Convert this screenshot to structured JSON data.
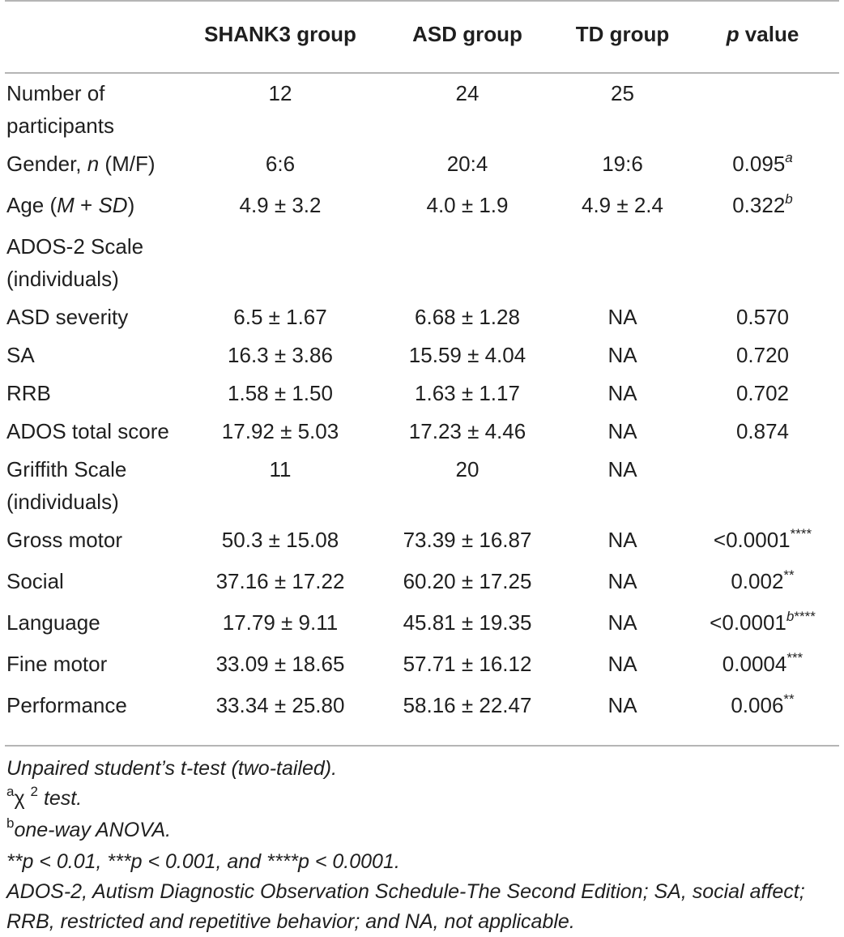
{
  "table": {
    "headers": [
      "",
      "SHANK3 group",
      "ASD group",
      "TD group",
      "p value"
    ],
    "rows": [
      {
        "label": "Number of participants",
        "shank3": "12",
        "asd": "24",
        "td": "25",
        "p": "",
        "p_sup": ""
      },
      {
        "label": "Gender, n (M/F)",
        "shank3": "6:6",
        "asd": "20:4",
        "td": "19:6",
        "p": "0.095",
        "p_sup": "a"
      },
      {
        "label": "Age (M + SD)",
        "shank3": "4.9 ± 3.2",
        "asd": "4.0 ± 1.9",
        "td": "4.9 ± 2.4",
        "p": "0.322",
        "p_sup": "b"
      },
      {
        "label": "ADOS-2 Scale (individuals)",
        "shank3": "",
        "asd": "",
        "td": "",
        "p": "",
        "p_sup": ""
      },
      {
        "label": "ASD severity",
        "shank3": "6.5 ± 1.67",
        "asd": "6.68 ± 1.28",
        "td": "NA",
        "p": "0.570",
        "p_sup": ""
      },
      {
        "label": "SA",
        "shank3": "16.3 ± 3.86",
        "asd": "15.59 ± 4.04",
        "td": "NA",
        "p": "0.720",
        "p_sup": ""
      },
      {
        "label": "RRB",
        "shank3": "1.58 ± 1.50",
        "asd": "1.63 ± 1.17",
        "td": "NA",
        "p": "0.702",
        "p_sup": ""
      },
      {
        "label": "ADOS total score",
        "shank3": "17.92 ± 5.03",
        "asd": "17.23 ± 4.46",
        "td": "NA",
        "p": "0.874",
        "p_sup": ""
      },
      {
        "label": "Griffith Scale (individuals)",
        "shank3": "11",
        "asd": "20",
        "td": "NA",
        "p": "",
        "p_sup": ""
      },
      {
        "label": "Gross motor",
        "shank3": "50.3 ± 15.08",
        "asd": "73.39 ± 16.87",
        "td": "NA",
        "p": "<0.0001",
        "p_sup": "****"
      },
      {
        "label": "Social",
        "shank3": "37.16 ± 17.22",
        "asd": "60.20 ± 17.25",
        "td": "NA",
        "p": "0.002",
        "p_sup": "**"
      },
      {
        "label": "Language",
        "shank3": "17.79 ± 9.11",
        "asd": "45.81 ± 19.35",
        "td": "NA",
        "p": "<0.0001",
        "p_sup": "b****"
      },
      {
        "label": "Fine motor",
        "shank3": "33.09 ± 18.65",
        "asd": "57.71 ± 16.12",
        "td": "NA",
        "p": "0.0004",
        "p_sup": "***"
      },
      {
        "label": "Performance",
        "shank3": "33.34 ± 25.80",
        "asd": "58.16 ± 22.47",
        "td": "NA",
        "p": "0.006",
        "p_sup": "**"
      }
    ]
  },
  "notes": {
    "test": "Unpaired student’s t-test (two-tailed).",
    "a_mark": "a",
    "a_chi": "χ",
    "a_chi_exp": "2",
    "a_text": " test.",
    "b_mark": "b",
    "b_text": "one-way ANOVA.",
    "significance": "**p < 0.01, ***p < 0.001, and ****p < 0.0001.",
    "abbreviations": "ADOS-2, Autism Diagnostic Observation Schedule-The Second Edition; SA, social affect; RRB, restricted and repetitive behavior; and NA, not applicable."
  }
}
